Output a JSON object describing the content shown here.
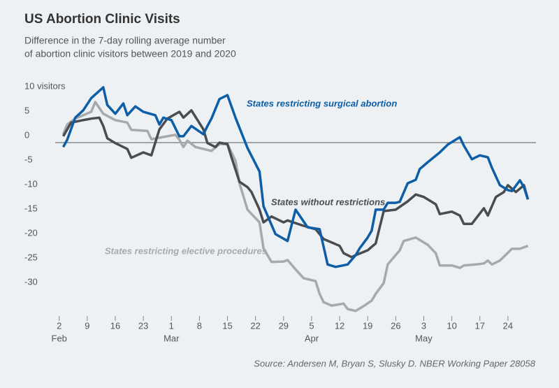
{
  "chart_data": {
    "type": "line",
    "title": "US Abortion Clinic Visits",
    "subtitle": [
      "Difference in the 7-day rolling average number",
      "of abortion clinic visitors between 2019 and 2020"
    ],
    "source": "Source: Andersen M, Bryan S, Slusky D. NBER Working Paper 28058",
    "xlim": [
      "02-01",
      "05-31"
    ],
    "ylim": [
      -35,
      12
    ],
    "yticks": [
      {
        "value": 10,
        "label": "10 visitors"
      },
      5,
      0,
      -5,
      -10,
      -15,
      -20,
      -25,
      -30
    ],
    "xticks": [
      {
        "value": "02-02",
        "label": "2"
      },
      {
        "value": "02-09",
        "label": "9"
      },
      {
        "value": "02-16",
        "label": "16"
      },
      {
        "value": "02-23",
        "label": "23"
      },
      {
        "value": "03-01",
        "label": "1"
      },
      {
        "value": "03-08",
        "label": "8"
      },
      {
        "value": "03-15",
        "label": "15"
      },
      {
        "value": "03-22",
        "label": "22"
      },
      {
        "value": "03-29",
        "label": "29"
      },
      {
        "value": "04-05",
        "label": "5"
      },
      {
        "value": "04-12",
        "label": "12"
      },
      {
        "value": "04-19",
        "label": "19"
      },
      {
        "value": "04-26",
        "label": "26"
      },
      {
        "value": "05-03",
        "label": "3"
      },
      {
        "value": "05-10",
        "label": "10"
      },
      {
        "value": "05-17",
        "label": "17"
      },
      {
        "value": "05-24",
        "label": "24"
      }
    ],
    "month_labels": [
      {
        "value": "02-02",
        "label": "Feb"
      },
      {
        "value": "03-01",
        "label": "Mar"
      },
      {
        "value": "04-05",
        "label": "Apr"
      },
      {
        "value": "05-03",
        "label": "May"
      }
    ],
    "zero_line": true,
    "series": [
      {
        "name": "States restricting elective procedures",
        "color": "#a7a9ab",
        "x": [
          "02-03",
          "02-04",
          "02-06",
          "02-10",
          "02-11",
          "02-13",
          "02-16",
          "02-19",
          "02-20",
          "02-24",
          "02-25",
          "02-27",
          "03-02",
          "03-03",
          "03-04",
          "03-05",
          "03-07",
          "03-09",
          "03-11",
          "03-13",
          "03-15",
          "03-17",
          "03-18",
          "03-20",
          "03-23",
          "03-24",
          "03-26",
          "03-29",
          "03-30",
          "04-01",
          "04-03",
          "04-06",
          "04-07",
          "04-08",
          "04-10",
          "04-13",
          "04-14",
          "04-16",
          "04-18",
          "04-20",
          "04-21",
          "04-23",
          "04-24",
          "04-27",
          "04-28",
          "05-01",
          "05-02",
          "05-04",
          "05-06",
          "05-07",
          "05-10",
          "05-12",
          "05-13",
          "05-16",
          "05-18",
          "05-19",
          "05-20",
          "05-22",
          "05-25",
          "05-27",
          "05-29"
        ],
        "values": [
          1.7,
          3.7,
          4.9,
          6.3,
          8.3,
          5.9,
          4.6,
          4.1,
          2.6,
          2.4,
          0.7,
          1,
          1.6,
          0.6,
          -0.9,
          0.4,
          -0.9,
          -1.3,
          -1.7,
          -0.3,
          -0.3,
          -3.7,
          -8.3,
          -13.7,
          -16.3,
          -21.6,
          -24.4,
          -24.3,
          -24,
          -25.9,
          -27.7,
          -28.3,
          -30.9,
          -32.6,
          -33.3,
          -32.9,
          -34,
          -34.4,
          -33.4,
          -32.3,
          -30.9,
          -28.7,
          -24.9,
          -22,
          -20.1,
          -19.4,
          -19.9,
          -20.9,
          -22.6,
          -25.1,
          -25.1,
          -25.6,
          -25.1,
          -24.9,
          -24.7,
          -24.1,
          -24.9,
          -24.1,
          -21.7,
          -21.7,
          -21.1
        ]
      },
      {
        "name": "States without restrictions",
        "color": "#4b4c4f",
        "x": [
          "02-03",
          "02-05",
          "02-08",
          "02-10",
          "02-12",
          "02-13",
          "02-14",
          "02-16",
          "02-19",
          "02-20",
          "02-23",
          "02-25",
          "02-27",
          "02-29",
          "03-03",
          "03-04",
          "03-06",
          "03-09",
          "03-10",
          "03-12",
          "03-13",
          "03-15",
          "03-16",
          "03-18",
          "03-20",
          "03-21",
          "03-23",
          "03-24",
          "03-26",
          "03-29",
          "03-30",
          "04-03",
          "04-06",
          "04-08",
          "04-12",
          "04-13",
          "04-15",
          "04-16",
          "04-19",
          "04-21",
          "04-22",
          "04-23",
          "04-26",
          "04-29",
          "05-01",
          "05-03",
          "05-06",
          "05-07",
          "05-10",
          "05-12",
          "05-13",
          "05-15",
          "05-18",
          "05-19",
          "05-21",
          "05-23",
          "05-24",
          "05-26",
          "05-28",
          "05-29"
        ],
        "values": [
          1.3,
          4.1,
          4.6,
          4.9,
          5.1,
          3.4,
          0.9,
          -0.1,
          -1.3,
          -3.1,
          -2,
          -2.6,
          2.7,
          4.9,
          6.3,
          5.1,
          6.6,
          2.7,
          -0.1,
          -0.9,
          0,
          -0.3,
          -3,
          -8,
          -9.1,
          -10.1,
          -13.7,
          -16.3,
          -15.1,
          -16.3,
          -15.9,
          -17,
          -17.7,
          -19.7,
          -21.1,
          -22.6,
          -23.4,
          -23,
          -22,
          -20.6,
          -17.3,
          -14,
          -13.7,
          -12,
          -10.6,
          -11.1,
          -12.6,
          -14.6,
          -14.1,
          -14.9,
          -16.6,
          -16.6,
          -13.4,
          -14.9,
          -11.1,
          -10.1,
          -8.7,
          -10.1,
          -8.7,
          -11.6
        ]
      },
      {
        "name": "States restricting surgical abortion",
        "color": "#0d5ea6",
        "x": [
          "02-03",
          "02-04",
          "02-06",
          "02-08",
          "02-10",
          "02-13",
          "02-14",
          "02-16",
          "02-18",
          "02-19",
          "02-21",
          "02-23",
          "02-26",
          "02-27",
          "02-28",
          "03-01",
          "03-03",
          "03-04",
          "03-06",
          "03-09",
          "03-10",
          "03-11",
          "03-13",
          "03-15",
          "03-17",
          "03-20",
          "03-23",
          "03-24",
          "03-27",
          "03-30",
          "04-01",
          "04-04",
          "04-07",
          "04-09",
          "04-11",
          "04-14",
          "04-16",
          "04-17",
          "04-19",
          "04-20",
          "04-21",
          "04-23",
          "04-24",
          "04-26",
          "04-27",
          "04-29",
          "05-01",
          "05-02",
          "05-04",
          "05-07",
          "05-09",
          "05-11",
          "05-12",
          "05-13",
          "05-15",
          "05-17",
          "05-19",
          "05-20",
          "05-22",
          "05-24",
          "05-25",
          "05-27",
          "05-28",
          "05-29"
        ],
        "values": [
          -0.9,
          0.6,
          5.1,
          6.6,
          9.1,
          11.3,
          7.7,
          5.9,
          8,
          5.6,
          7.4,
          6.3,
          5.6,
          3.7,
          5.1,
          4.6,
          1.3,
          1.3,
          3.4,
          1.7,
          3.4,
          4.9,
          8.9,
          9.7,
          5.1,
          -1.1,
          -5.9,
          -13,
          -18.7,
          -20.1,
          -13.7,
          -17.3,
          -17.7,
          -24.9,
          -25.4,
          -24.9,
          -23,
          -21.6,
          -19.4,
          -18,
          -13.7,
          -13.7,
          -12.3,
          -12.3,
          -12.1,
          -8.3,
          -7.6,
          -5.4,
          -4,
          -2,
          -0.4,
          0.6,
          1.1,
          -0.6,
          -3.4,
          -2.6,
          -3,
          -5.1,
          -8.7,
          -9.7,
          -9.9,
          -7.7,
          -9.1,
          -11.6
        ]
      }
    ]
  }
}
